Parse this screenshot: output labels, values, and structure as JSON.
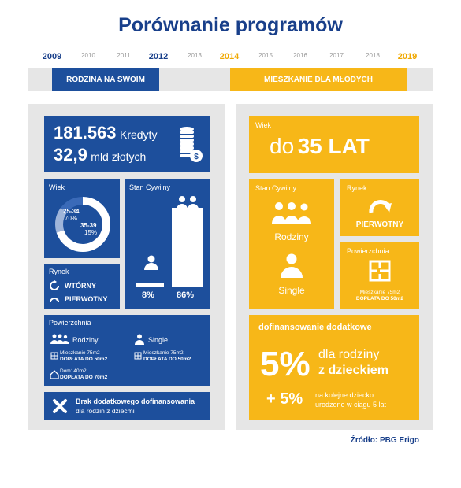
{
  "title": "Porównanie programów",
  "timeline": {
    "years": [
      "2009",
      "2010",
      "2011",
      "2012",
      "2013",
      "2014",
      "2015",
      "2016",
      "2017",
      "2018",
      "2019"
    ]
  },
  "left": {
    "header": "RODZINA NA SWOIM",
    "credits_count": "181.563",
    "credits_label": "Kredyty",
    "amount": "32,9",
    "amount_label": "mld złotych",
    "age": {
      "label": "Wiek",
      "segment1_range": "25-34",
      "segment1_pct": "70%",
      "segment2_range": "35-39",
      "segment2_pct": "15%",
      "donut_values": [
        70,
        15
      ]
    },
    "civil": {
      "label": "Stan Cywilny",
      "single_pct": "8%",
      "family_pct": "86%",
      "bar_values": [
        8,
        86
      ]
    },
    "market": {
      "label": "Rynek",
      "secondary": "WTÓRNY",
      "primary": "PIERWOTNY"
    },
    "area": {
      "label": "Powierzchnia",
      "families_label": "Rodziny",
      "single_label": "Single",
      "families_flat": "Mieszkanie 75m2",
      "families_flat_extra": "DOPŁATA DO 50m2",
      "single_flat": "Mieszkanie 75m2",
      "single_flat_extra": "DOPŁATA DO 50m2",
      "house": "Dom140m2",
      "house_extra": "DOPŁATA DO 70m2"
    },
    "no_extra": {
      "line1": "Brak dodatkowego dofinansowania",
      "line2": "dla rodzin z dziećmi"
    }
  },
  "right": {
    "header": "MIESZKANIE DLA MŁODYCH",
    "age_label": "Wiek",
    "age_prefix": "do",
    "age_value": "35 LAT",
    "civil_label": "Stan Cywilny",
    "families_label": "Rodziny",
    "single_label": "Single",
    "market_label": "Rynek",
    "market_value": "PIERWOTNY",
    "area_label": "Powierzchnia",
    "area_flat": "Mieszkanie 75m2",
    "area_extra": "DOPŁATA DO 50m2",
    "extra_title": "dofinansowanie dodatkowe",
    "extra_pct1": "5%",
    "extra_text1_line1": "dla rodziny",
    "extra_text1_line2": "z dzieckiem",
    "extra_pct2": "+ 5%",
    "extra_text2_line1": "na kolejne dziecko",
    "extra_text2_line2": "urodzone w ciągu 5 lat"
  },
  "source": "Źródło: PBG Erigo",
  "colors": {
    "blue": "#1d4f9c",
    "yellow": "#f7b718",
    "grey": "#e6e6e6",
    "title": "#183f8a"
  }
}
